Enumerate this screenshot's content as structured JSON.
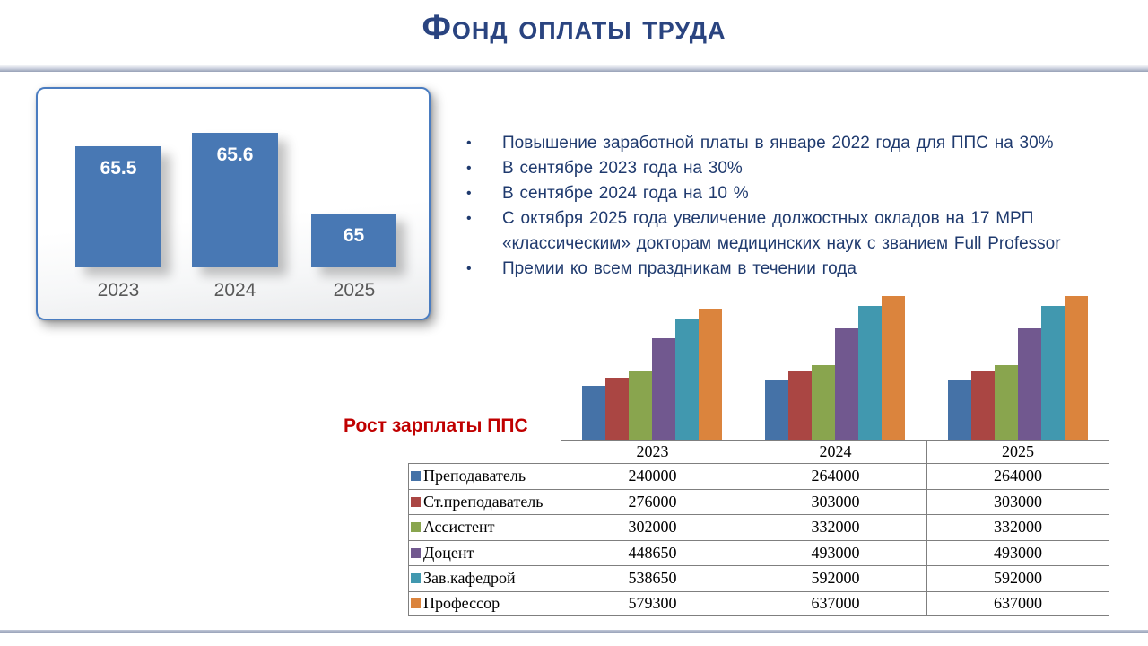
{
  "title": "Фонд оплаты труда",
  "colors": {
    "title_navy": "#2a4480",
    "bullet_navy": "#1f3a6e",
    "accent_red": "#c00000",
    "fund_bar_blue": "#4878b4"
  },
  "bullets": [
    "Повышение заработной платы в январе 2022 года для ППС на 30%",
    "В сентябре 2023 года на 30%",
    "В сентябре 2024 года на 10 %",
    "С октября 2025 года увеличение должостных окладов на 17 МРП «классическим» докторам медицинских наук с званием Full Professor",
    "Премии ко всем праздникам в течении года"
  ],
  "growth_label": "Рост зарплаты ППС",
  "chart_data": [
    {
      "type": "bar",
      "title": "Фонд оплаты труда",
      "categories": [
        "2023",
        "2024",
        "2025"
      ],
      "values": [
        65.5,
        65.6,
        65
      ],
      "data_labels": [
        "65.5",
        "65.6",
        "65"
      ],
      "bar_color": "#4878b4",
      "gridlines": false,
      "legend_position": "none"
    },
    {
      "type": "bar",
      "title": "Рост зарплаты ППС",
      "categories": [
        "2023",
        "2024",
        "2025"
      ],
      "series": [
        {
          "name": "Преподаватель",
          "color": "#4572A7",
          "values": [
            240000,
            264000,
            264000
          ]
        },
        {
          "name": "Ст.преподаватель",
          "color": "#AA4643",
          "values": [
            276000,
            303000,
            303000
          ]
        },
        {
          "name": "Ассистент",
          "color": "#89A54E",
          "values": [
            302000,
            332000,
            332000
          ]
        },
        {
          "name": "Доцент",
          "color": "#71588F",
          "values": [
            448650,
            493000,
            493000
          ]
        },
        {
          "name": "Зав.кафедрой",
          "color": "#4198AF",
          "values": [
            538650,
            592000,
            592000
          ]
        },
        {
          "name": "Профессор",
          "color": "#DB843D",
          "values": [
            579300,
            637000,
            637000
          ]
        }
      ],
      "ylim": [
        0,
        650000
      ],
      "gridlines": false,
      "legend_position": "table-left"
    }
  ]
}
